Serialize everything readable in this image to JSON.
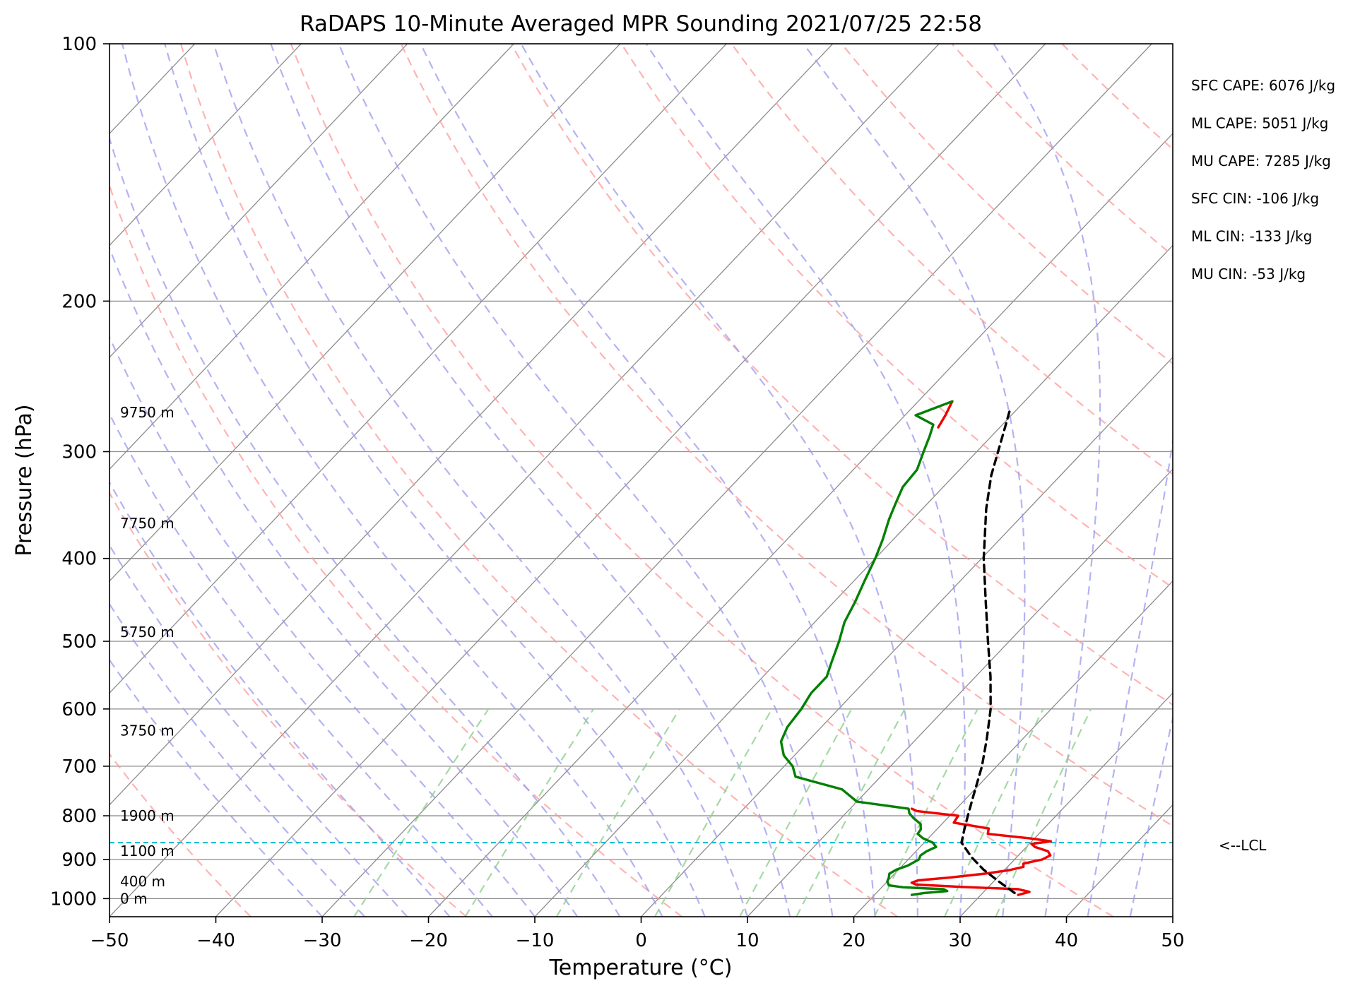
{
  "chart_data": {
    "type": "skew-t",
    "title": "RaDAPS 10-Minute Averaged MPR Sounding 2021/07/25 22:58",
    "xlabel": "Temperature (°C)",
    "ylabel": "Pressure (hPa)",
    "xlim": [
      -50,
      50
    ],
    "ylim": [
      1050,
      100
    ],
    "log_y": true,
    "grid": true,
    "x_ticks": [
      -50,
      -40,
      -30,
      -20,
      -10,
      0,
      10,
      20,
      30,
      40,
      50
    ],
    "x_tick_labels": [
      "−50",
      "−40",
      "−30",
      "−20",
      "−10",
      "0",
      "10",
      "20",
      "30",
      "40",
      "50"
    ],
    "y_ticks": [
      100,
      200,
      300,
      400,
      500,
      600,
      700,
      800,
      900,
      1000
    ],
    "y_tick_labels": [
      "100",
      "200",
      "300",
      "400",
      "500",
      "600",
      "700",
      "800",
      "900",
      "1000"
    ],
    "height_labels": [
      {
        "text": "0 m",
        "pressure": 1000
      },
      {
        "text": "400 m",
        "pressure": 955
      },
      {
        "text": "1100 m",
        "pressure": 880
      },
      {
        "text": "1900 m",
        "pressure": 800
      },
      {
        "text": "3750 m",
        "pressure": 636
      },
      {
        "text": "5750 m",
        "pressure": 488
      },
      {
        "text": "7750 m",
        "pressure": 364
      },
      {
        "text": "9750 m",
        "pressure": 270
      }
    ],
    "stats": [
      "SFC CAPE: 6076 J/kg",
      "ML CAPE: 5051 J/kg",
      "MU CAPE: 7285 J/kg",
      "SFC CIN: -106 J/kg",
      "ML CIN: -133 J/kg",
      "MU CIN: -53 J/kg"
    ],
    "lcl": {
      "pressure": 860,
      "label": "<--LCL"
    },
    "colors": {
      "temperature": "#ee0000",
      "dewpoint": "#008000",
      "parcel": "#000000",
      "lcl_line": "#17becf",
      "dry_adiabats": "#ff9999",
      "moist_adiabats": "#9999ee",
      "mixing_ratio": "#8fcf8f",
      "isotherms": "#8c8c8c",
      "isobars": "#8c8c8c"
    },
    "series": [
      {
        "name": "Temperature",
        "points": [
          {
            "p": 990,
            "t": 33.5
          },
          {
            "p": 982,
            "t": 34.3
          },
          {
            "p": 975,
            "t": 33.0
          },
          {
            "p": 969,
            "t": 27.5
          },
          {
            "p": 963,
            "t": 23.0
          },
          {
            "p": 958,
            "t": 22.4
          },
          {
            "p": 952,
            "t": 22.8
          },
          {
            "p": 945,
            "t": 25.5
          },
          {
            "p": 935,
            "t": 28.5
          },
          {
            "p": 926,
            "t": 30.5
          },
          {
            "p": 918,
            "t": 31.5
          },
          {
            "p": 910,
            "t": 31.2
          },
          {
            "p": 900,
            "t": 32.6
          },
          {
            "p": 890,
            "t": 33.0
          },
          {
            "p": 880,
            "t": 32.4
          },
          {
            "p": 870,
            "t": 30.8
          },
          {
            "p": 863,
            "t": 30.2
          },
          {
            "p": 857,
            "t": 31.8
          },
          {
            "p": 850,
            "t": 29.5
          },
          {
            "p": 840,
            "t": 25.2
          },
          {
            "p": 828,
            "t": 24.8
          },
          {
            "p": 815,
            "t": 21.0
          },
          {
            "p": 808,
            "t": 20.9
          },
          {
            "p": 800,
            "t": 20.8
          },
          {
            "p": 790,
            "t": 16.5
          },
          {
            "p": 785,
            "t": 15.8
          }
        ]
      },
      {
        "name": "Dewpoint",
        "points": [
          {
            "p": 990,
            "t": 23.5
          },
          {
            "p": 985,
            "t": 24.5
          },
          {
            "p": 980,
            "t": 26.5
          },
          {
            "p": 975,
            "t": 26.0
          },
          {
            "p": 970,
            "t": 22.0
          },
          {
            "p": 965,
            "t": 20.5
          },
          {
            "p": 955,
            "t": 20.0
          },
          {
            "p": 945,
            "t": 19.8
          },
          {
            "p": 935,
            "t": 19.5
          },
          {
            "p": 925,
            "t": 19.8
          },
          {
            "p": 915,
            "t": 20.5
          },
          {
            "p": 900,
            "t": 21.0
          },
          {
            "p": 890,
            "t": 20.8
          },
          {
            "p": 880,
            "t": 21.0
          },
          {
            "p": 870,
            "t": 21.5
          },
          {
            "p": 860,
            "t": 20.8
          },
          {
            "p": 850,
            "t": 19.5
          },
          {
            "p": 840,
            "t": 18.6
          },
          {
            "p": 830,
            "t": 18.5
          },
          {
            "p": 818,
            "t": 18.0
          },
          {
            "p": 805,
            "t": 16.8
          },
          {
            "p": 795,
            "t": 16.0
          },
          {
            "p": 785,
            "t": 15.5
          },
          {
            "p": 770,
            "t": 10.0
          },
          {
            "p": 745,
            "t": 7.5
          },
          {
            "p": 720,
            "t": 2.0
          },
          {
            "p": 700,
            "t": 0.8
          },
          {
            "p": 680,
            "t": -1.0
          },
          {
            "p": 655,
            "t": -2.5
          },
          {
            "p": 630,
            "t": -3.2
          },
          {
            "p": 600,
            "t": -3.5
          },
          {
            "p": 575,
            "t": -4.0
          },
          {
            "p": 550,
            "t": -4.0
          },
          {
            "p": 530,
            "t": -4.8
          },
          {
            "p": 500,
            "t": -6.0
          },
          {
            "p": 475,
            "t": -7.2
          },
          {
            "p": 450,
            "t": -8.0
          },
          {
            "p": 425,
            "t": -9.0
          },
          {
            "p": 400,
            "t": -10.0
          },
          {
            "p": 380,
            "t": -11.0
          },
          {
            "p": 360,
            "t": -12.2
          },
          {
            "p": 345,
            "t": -13.0
          },
          {
            "p": 330,
            "t": -13.8
          },
          {
            "p": 315,
            "t": -14.0
          },
          {
            "p": 300,
            "t": -15.0
          },
          {
            "p": 288,
            "t": -15.8
          },
          {
            "p": 279,
            "t": -16.5
          },
          {
            "p": 272,
            "t": -19.0
          },
          {
            "p": 262,
            "t": -16.8
          }
        ]
      },
      {
        "name": "Temperature (upper)",
        "points": [
          {
            "p": 262,
            "t": -16.8
          },
          {
            "p": 272,
            "t": -16.2
          },
          {
            "p": 281,
            "t": -15.8
          }
        ]
      },
      {
        "name": "Parcel",
        "points": [
          {
            "p": 985,
            "t": 33.0
          },
          {
            "p": 955,
            "t": 30.5
          },
          {
            "p": 925,
            "t": 28.0
          },
          {
            "p": 895,
            "t": 25.8
          },
          {
            "p": 860,
            "t": 23.5
          },
          {
            "p": 830,
            "t": 22.6
          },
          {
            "p": 800,
            "t": 21.7
          },
          {
            "p": 760,
            "t": 20.5
          },
          {
            "p": 700,
            "t": 18.6
          },
          {
            "p": 650,
            "t": 16.6
          },
          {
            "p": 600,
            "t": 14.3
          },
          {
            "p": 550,
            "t": 11.4
          },
          {
            "p": 500,
            "t": 8.0
          },
          {
            "p": 450,
            "t": 4.3
          },
          {
            "p": 400,
            "t": 0.2
          },
          {
            "p": 350,
            "t": -4.0
          },
          {
            "p": 320,
            "t": -6.5
          },
          {
            "p": 300,
            "t": -8.0
          },
          {
            "p": 280,
            "t": -9.6
          },
          {
            "p": 266,
            "t": -10.8
          }
        ]
      }
    ]
  }
}
